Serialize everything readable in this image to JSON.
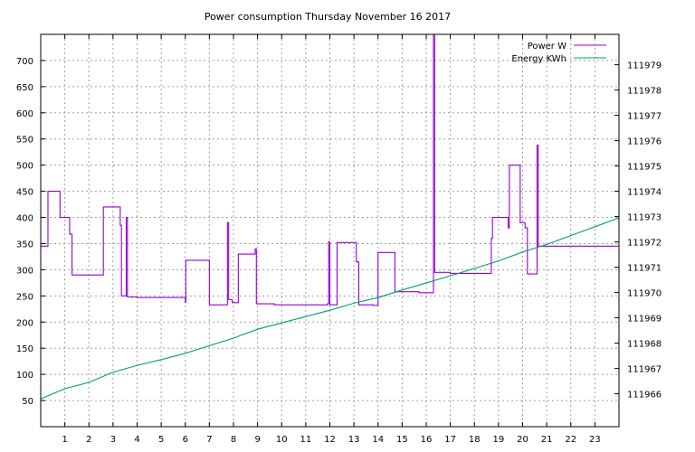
{
  "chart_data": {
    "type": "line",
    "title": "Power consumption Thursday November 16 2017",
    "xlabel": "",
    "ylabel": "",
    "xlim": [
      0,
      24
    ],
    "ylim": [
      0,
      750
    ],
    "y2lim": [
      111964.7,
      111980.2
    ],
    "x_ticks": [
      1,
      2,
      3,
      4,
      5,
      6,
      7,
      8,
      9,
      10,
      11,
      12,
      13,
      14,
      15,
      16,
      17,
      18,
      19,
      20,
      21,
      22,
      23
    ],
    "y_ticks": [
      50,
      100,
      150,
      200,
      250,
      300,
      350,
      400,
      450,
      500,
      550,
      600,
      650,
      700
    ],
    "y2_ticks": [
      111966,
      111967,
      111968,
      111969,
      111970,
      111971,
      111972,
      111973,
      111974,
      111975,
      111976,
      111977,
      111978,
      111979
    ],
    "grid": true,
    "legend_position": "top-right",
    "colors": {
      "power": "#9400d3",
      "energy": "#009e73"
    },
    "series": [
      {
        "name": "Power W",
        "axis": "left",
        "style": "step",
        "points": [
          [
            0,
            345
          ],
          [
            0.3,
            450
          ],
          [
            0.8,
            400
          ],
          [
            1.2,
            368
          ],
          [
            1.3,
            290
          ],
          [
            2.6,
            420
          ],
          [
            3.3,
            385
          ],
          [
            3.35,
            250
          ],
          [
            3.55,
            400
          ],
          [
            3.6,
            248
          ],
          [
            4.0,
            247
          ],
          [
            6.0,
            238
          ],
          [
            6.02,
            318
          ],
          [
            7.0,
            233
          ],
          [
            7.75,
            390
          ],
          [
            7.8,
            243
          ],
          [
            7.95,
            237
          ],
          [
            8.2,
            330
          ],
          [
            8.9,
            340
          ],
          [
            8.95,
            235
          ],
          [
            9.7,
            233
          ],
          [
            11.9,
            235
          ],
          [
            11.95,
            353
          ],
          [
            12.0,
            233
          ],
          [
            12.3,
            352
          ],
          [
            13.1,
            315
          ],
          [
            13.2,
            233
          ],
          [
            13.8,
            232
          ],
          [
            14.0,
            333
          ],
          [
            14.7,
            258
          ],
          [
            15.7,
            256
          ],
          [
            16.3,
            750
          ],
          [
            16.35,
            295
          ],
          [
            17.0,
            293
          ],
          [
            18.7,
            360
          ],
          [
            18.75,
            400
          ],
          [
            19.4,
            380
          ],
          [
            19.45,
            500
          ],
          [
            19.9,
            390
          ],
          [
            20.1,
            380
          ],
          [
            20.2,
            292
          ],
          [
            20.6,
            538
          ],
          [
            20.65,
            345
          ],
          [
            24.0,
            345
          ]
        ]
      },
      {
        "name": "Energy KWh",
        "axis": "right",
        "style": "line",
        "points": [
          [
            0,
            111965.8
          ],
          [
            1,
            111966.2
          ],
          [
            2,
            111966.45
          ],
          [
            3,
            111966.85
          ],
          [
            4,
            111967.12
          ],
          [
            5,
            111967.35
          ],
          [
            6,
            111967.6
          ],
          [
            7,
            111967.9
          ],
          [
            8,
            111968.2
          ],
          [
            9,
            111968.55
          ],
          [
            10,
            111968.8
          ],
          [
            11,
            111969.05
          ],
          [
            12,
            111969.3
          ],
          [
            13,
            111969.58
          ],
          [
            14,
            111969.8
          ],
          [
            15,
            111970.1
          ],
          [
            16,
            111970.38
          ],
          [
            17,
            111970.66
          ],
          [
            18,
            111970.95
          ],
          [
            19,
            111971.25
          ],
          [
            20,
            111971.6
          ],
          [
            21,
            111971.9
          ],
          [
            22,
            111972.25
          ],
          [
            23,
            111972.6
          ],
          [
            24,
            111972.95
          ]
        ]
      }
    ]
  }
}
